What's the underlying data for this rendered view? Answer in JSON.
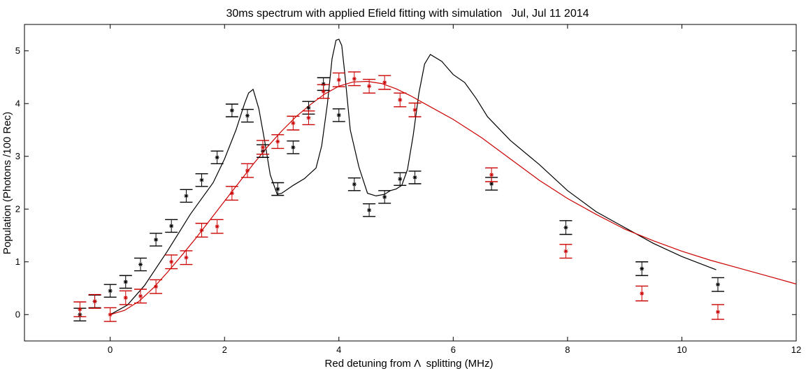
{
  "chart_data": {
    "type": "scatter",
    "title": "30ms spectrum with applied Efield fitting with simulation   Jul, Jul 11 2014",
    "xlabel": "Red detuning from Λ  splitting (MHz)",
    "ylabel": "Population (Photons /100 Rec)",
    "xlim": [
      -1.5,
      12
    ],
    "ylim": [
      -0.5,
      5.5
    ],
    "xticks": [
      0,
      2,
      4,
      6,
      8,
      10,
      12
    ],
    "yticks": [
      0,
      1,
      2,
      3,
      4,
      5
    ],
    "grid": false,
    "series": [
      {
        "kind": "errorbar",
        "color": "#000000",
        "x": [
          -0.53,
          -0.27,
          0.0,
          0.27,
          0.53,
          0.8,
          1.07,
          1.33,
          1.6,
          1.87,
          2.13,
          2.4,
          2.67,
          2.93,
          3.2,
          3.47,
          3.73,
          4.0,
          4.27,
          4.53,
          4.8,
          5.07,
          5.33,
          6.67,
          7.97,
          9.3,
          10.63
        ],
        "y": [
          0.0,
          0.25,
          0.45,
          0.62,
          0.95,
          1.42,
          1.68,
          2.25,
          2.55,
          2.98,
          3.87,
          3.77,
          3.1,
          2.38,
          3.17,
          3.92,
          4.37,
          3.78,
          2.47,
          1.98,
          2.23,
          2.57,
          2.6,
          2.48,
          1.65,
          0.87,
          0.57
        ],
        "err": [
          0.12,
          0.12,
          0.12,
          0.12,
          0.12,
          0.12,
          0.12,
          0.12,
          0.12,
          0.12,
          0.12,
          0.12,
          0.12,
          0.12,
          0.12,
          0.12,
          0.12,
          0.12,
          0.12,
          0.12,
          0.12,
          0.12,
          0.12,
          0.12,
          0.13,
          0.13,
          0.13
        ]
      },
      {
        "kind": "errorbar",
        "color": "#cc0000",
        "x": [
          -0.53,
          -0.27,
          0.0,
          0.27,
          0.53,
          0.8,
          1.07,
          1.33,
          1.6,
          1.87,
          2.13,
          2.4,
          2.67,
          2.93,
          3.2,
          3.47,
          3.73,
          4.0,
          4.27,
          4.53,
          4.8,
          5.07,
          5.33,
          6.67,
          7.97,
          9.3,
          10.63
        ],
        "y": [
          0.1,
          0.25,
          0.0,
          0.32,
          0.35,
          0.53,
          1.0,
          1.08,
          1.6,
          1.67,
          2.3,
          2.73,
          3.17,
          3.28,
          3.63,
          3.73,
          4.23,
          4.45,
          4.47,
          4.33,
          4.4,
          4.07,
          3.88,
          2.65,
          1.2,
          0.4,
          0.05
        ],
        "err": [
          0.14,
          0.13,
          0.13,
          0.13,
          0.13,
          0.13,
          0.13,
          0.13,
          0.13,
          0.13,
          0.13,
          0.13,
          0.13,
          0.13,
          0.13,
          0.13,
          0.13,
          0.13,
          0.13,
          0.13,
          0.13,
          0.13,
          0.13,
          0.13,
          0.13,
          0.14,
          0.14
        ]
      },
      {
        "kind": "line",
        "color": "#000000",
        "x": [
          0.0,
          0.3,
          0.6,
          1.0,
          1.4,
          1.8,
          2.0,
          2.2,
          2.35,
          2.42,
          2.5,
          2.6,
          2.7,
          2.8,
          2.92,
          3.0,
          3.2,
          3.4,
          3.6,
          3.7,
          3.8,
          3.88,
          3.95,
          4.0,
          4.05,
          4.1,
          4.2,
          4.35,
          4.5,
          4.65,
          4.8,
          4.9,
          5.0,
          5.1,
          5.2,
          5.3,
          5.4,
          5.5,
          5.6,
          5.8,
          6.0,
          6.2,
          6.4,
          6.6,
          7.0,
          7.5,
          8.0,
          8.5,
          9.0,
          9.5,
          10.0,
          10.6
        ],
        "y": [
          0.0,
          0.18,
          0.55,
          1.2,
          1.9,
          2.5,
          2.95,
          3.5,
          4.0,
          4.2,
          4.27,
          3.9,
          3.3,
          2.65,
          2.28,
          2.3,
          2.45,
          2.58,
          2.78,
          3.2,
          4.0,
          4.85,
          5.2,
          5.22,
          5.1,
          4.6,
          3.5,
          2.8,
          2.3,
          2.25,
          2.28,
          2.35,
          2.38,
          2.45,
          2.75,
          3.4,
          4.2,
          4.75,
          4.93,
          4.8,
          4.55,
          4.4,
          4.1,
          3.75,
          3.3,
          2.85,
          2.35,
          1.95,
          1.65,
          1.35,
          1.1,
          0.85
        ]
      },
      {
        "kind": "line",
        "color": "#cc0000",
        "x": [
          0.0,
          0.25,
          0.5,
          0.75,
          1.0,
          1.25,
          1.5,
          1.75,
          2.0,
          2.25,
          2.5,
          2.75,
          3.0,
          3.25,
          3.5,
          3.75,
          4.0,
          4.25,
          4.5,
          4.75,
          5.0,
          5.25,
          5.5,
          6.0,
          6.5,
          7.0,
          7.5,
          8.0,
          8.5,
          9.0,
          9.5,
          10.0,
          10.5,
          11.0,
          11.5,
          12.0
        ],
        "y": [
          0.0,
          0.08,
          0.25,
          0.5,
          0.8,
          1.12,
          1.45,
          1.8,
          2.15,
          2.5,
          2.85,
          3.18,
          3.48,
          3.75,
          3.98,
          4.18,
          4.33,
          4.41,
          4.42,
          4.38,
          4.28,
          4.15,
          4.0,
          3.7,
          3.35,
          2.95,
          2.55,
          2.2,
          1.9,
          1.62,
          1.4,
          1.2,
          1.03,
          0.88,
          0.73,
          0.58
        ]
      }
    ]
  }
}
